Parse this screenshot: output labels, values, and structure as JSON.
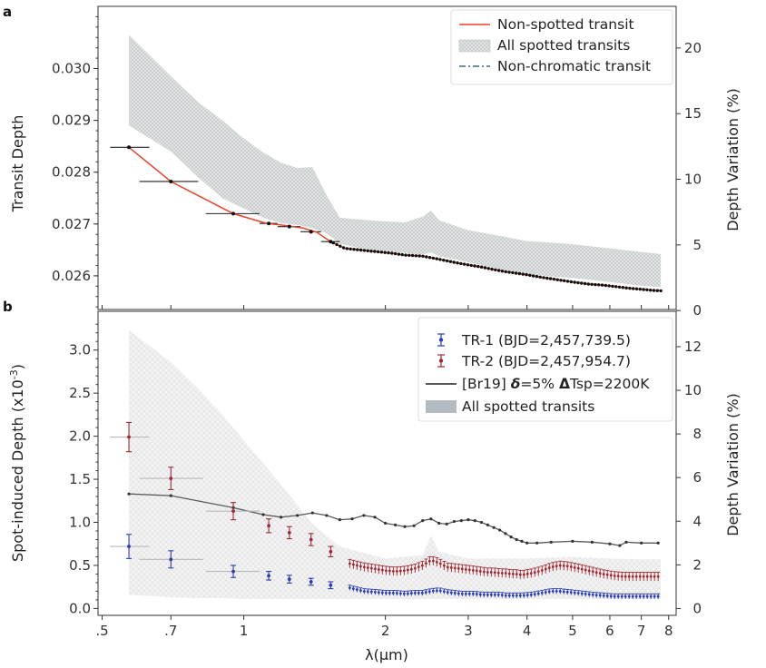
{
  "colors": {
    "red": "#e8432a",
    "tr1": "#2b3eb0",
    "tr2": "#9e2a33",
    "model": "#555b55",
    "band_a": "#d3d7d7",
    "band_b": "#e3e5e5",
    "nonchrom": "#3f6b6b",
    "legend_band": "#b3bbc0"
  },
  "chart_data": [
    {
      "panel": "a",
      "type": "line",
      "xlabel": "λ(μm)",
      "ylabel": "Transit Depth",
      "ylabel_right": "Depth Variation (%)",
      "xscale": "log",
      "xlim": [
        0.49,
        8.3
      ],
      "ylim": [
        0.02535,
        0.0312
      ],
      "yticks": [
        0.026,
        0.027,
        0.028,
        0.029,
        0.03
      ],
      "yticklabels": [
        "0.026",
        "0.027",
        "0.028",
        "0.029",
        "0.030"
      ],
      "right_ticks": [
        0,
        5,
        10,
        15,
        20
      ],
      "right_ticklabels": [
        "0",
        "5",
        "10",
        "15",
        "20"
      ],
      "right_baseline": 0.02533,
      "legend": [
        "Non-spotted transit",
        "All spotted transits",
        "Non-chromatic transit"
      ],
      "nonchromatic_level": 0.02533,
      "nonspotted_x": [
        0.57,
        0.7,
        0.95,
        1.12,
        1.2,
        1.27,
        1.34,
        1.43,
        1.53,
        1.64,
        1.76,
        1.9,
        2.05,
        2.2,
        2.4,
        2.6,
        2.8,
        3.0,
        3.2,
        3.4,
        3.6,
        3.8,
        4.0,
        4.3,
        4.6,
        5.0,
        5.4,
        5.8,
        6.2,
        6.6,
        7.0,
        7.4,
        7.7
      ],
      "nonspotted_y": [
        0.02848,
        0.02782,
        0.0272,
        0.02701,
        0.02698,
        0.02695,
        0.02692,
        0.02684,
        0.02666,
        0.02653,
        0.0265,
        0.02647,
        0.02644,
        0.0264,
        0.02638,
        0.02632,
        0.02626,
        0.02621,
        0.02617,
        0.02612,
        0.02608,
        0.02605,
        0.02602,
        0.02597,
        0.02593,
        0.02588,
        0.02584,
        0.02582,
        0.02579,
        0.02576,
        0.02574,
        0.02572,
        0.02571
      ],
      "binned_points": [
        {
          "x": 0.57,
          "y": 0.02848,
          "xerr": [
            0.52,
            0.63
          ]
        },
        {
          "x": 0.7,
          "y": 0.02782,
          "xerr": [
            0.6,
            0.8
          ]
        },
        {
          "x": 0.95,
          "y": 0.0272,
          "xerr": [
            0.83,
            1.08
          ]
        },
        {
          "x": 1.13,
          "y": 0.02701,
          "xerr": [
            1.08,
            1.18
          ]
        },
        {
          "x": 1.25,
          "y": 0.02695,
          "xerr": [
            1.18,
            1.32
          ]
        },
        {
          "x": 1.39,
          "y": 0.02685,
          "xerr": [
            1.32,
            1.46
          ]
        },
        {
          "x": 1.53,
          "y": 0.02666,
          "xerr": [
            1.46,
            1.6
          ]
        }
      ],
      "band_x": [
        0.57,
        0.7,
        0.8,
        0.9,
        1.0,
        1.1,
        1.2,
        1.3,
        1.4,
        1.5,
        1.6,
        1.8,
        2.0,
        2.2,
        2.4,
        2.5,
        2.6,
        2.8,
        3.0,
        3.5,
        4.0,
        4.5,
        5.0,
        6.0,
        7.0,
        7.7
      ],
      "band_upper": [
        0.03065,
        0.02985,
        0.02935,
        0.029,
        0.02865,
        0.02838,
        0.02818,
        0.02808,
        0.0281,
        0.02755,
        0.02712,
        0.02708,
        0.02705,
        0.02703,
        0.02714,
        0.02726,
        0.02707,
        0.02697,
        0.02688,
        0.02677,
        0.02667,
        0.02664,
        0.02661,
        0.02653,
        0.02646,
        0.02642
      ],
      "band_lower": [
        0.0289,
        0.0284,
        0.0279,
        0.0275,
        0.0273,
        0.02712,
        0.02702,
        0.02698,
        0.02692,
        0.02682,
        0.02662,
        0.02652,
        0.02648,
        0.02644,
        0.02641,
        0.02645,
        0.02638,
        0.02632,
        0.02626,
        0.02613,
        0.02604,
        0.02599,
        0.02596,
        0.02588,
        0.02581,
        0.02578
      ]
    },
    {
      "panel": "b",
      "type": "line",
      "xlabel": "λ(μm)",
      "ylabel": "Spot-induced Depth (x10",
      "ylabel_exp": "-3",
      "ylabel_close": ")",
      "ylabel_right": "Depth Variation (%)",
      "xscale": "log",
      "xlim": [
        0.49,
        8.3
      ],
      "ylim": [
        -0.08,
        3.45
      ],
      "xticks": [
        0.5,
        0.7,
        1,
        2,
        3,
        4,
        5,
        6,
        7,
        8
      ],
      "xticklabels": [
        ".5",
        ".7",
        "1",
        "2",
        "3",
        "4",
        "5",
        "6",
        "7",
        "8"
      ],
      "yticks": [
        0.0,
        0.5,
        1.0,
        1.5,
        2.0,
        2.5,
        3.0
      ],
      "yticklabels": [
        "0.0",
        "0.5",
        "1.0",
        "1.5",
        "2.0",
        "2.5",
        "3.0"
      ],
      "right_ticks": [
        0,
        2,
        4,
        6,
        8,
        10,
        12
      ],
      "right_ticklabels": [
        "0",
        "2",
        "4",
        "6",
        "8",
        "10",
        "12"
      ],
      "right_scale": 0.2533,
      "legend": [
        {
          "label": "TR-1  (BJD=2,457,739.5)"
        },
        {
          "label": "TR-2  (BJD=2,457,954.7)"
        },
        {
          "prefix": "[Br19] ",
          "delta": "δ",
          "eq1": "=5% ",
          "Delta": "Δ",
          "tsp": "Tsp=2200K"
        },
        {
          "label": "All spotted transits"
        }
      ],
      "tr1_x": [
        0.57,
        0.7,
        0.95,
        1.13,
        1.25,
        1.39,
        1.53
      ],
      "tr1_y": [
        0.72,
        0.57,
        0.43,
        0.38,
        0.34,
        0.31,
        0.27
      ],
      "tr1_err": [
        0.14,
        0.1,
        0.07,
        0.05,
        0.045,
        0.04,
        0.04
      ],
      "tr1_xerr": [
        [
          0.52,
          0.63
        ],
        [
          0.6,
          0.82
        ],
        [
          0.83,
          1.08
        ]
      ],
      "tr1_dense_x": [
        1.68,
        1.8,
        1.9,
        2.0,
        2.1,
        2.2,
        2.3,
        2.4,
        2.5,
        2.6,
        2.7,
        2.8,
        2.9,
        3.0,
        3.1,
        3.2,
        3.3,
        3.4,
        3.5,
        3.6,
        3.7,
        3.8,
        3.9,
        4.1,
        4.3,
        4.5,
        4.7,
        4.9,
        5.1,
        5.3,
        5.5,
        5.8,
        6.1,
        6.4,
        6.7,
        7.0,
        7.3,
        7.6
      ],
      "tr1_dense_y": [
        0.24,
        0.2,
        0.19,
        0.18,
        0.18,
        0.17,
        0.18,
        0.18,
        0.2,
        0.21,
        0.19,
        0.18,
        0.17,
        0.17,
        0.17,
        0.16,
        0.16,
        0.16,
        0.16,
        0.15,
        0.15,
        0.15,
        0.15,
        0.16,
        0.18,
        0.2,
        0.2,
        0.19,
        0.18,
        0.17,
        0.16,
        0.15,
        0.14,
        0.14,
        0.14,
        0.14,
        0.14,
        0.14
      ],
      "tr2_x": [
        0.57,
        0.7,
        0.95,
        1.13,
        1.25,
        1.39,
        1.53
      ],
      "tr2_y": [
        1.99,
        1.51,
        1.13,
        0.96,
        0.88,
        0.8,
        0.66
      ],
      "tr2_err": [
        0.17,
        0.13,
        0.1,
        0.08,
        0.07,
        0.07,
        0.06
      ],
      "tr2_xerr": [
        [
          0.52,
          0.63
        ],
        [
          0.6,
          0.82
        ],
        [
          0.83,
          1.08
        ]
      ],
      "tr2_dense_x": [
        1.68,
        1.8,
        1.9,
        2.0,
        2.1,
        2.2,
        2.3,
        2.4,
        2.5,
        2.6,
        2.7,
        2.8,
        2.9,
        3.0,
        3.1,
        3.2,
        3.3,
        3.4,
        3.5,
        3.6,
        3.7,
        3.8,
        3.9,
        4.1,
        4.3,
        4.5,
        4.7,
        4.9,
        5.1,
        5.3,
        5.5,
        5.8,
        6.1,
        6.4,
        6.7,
        7.0,
        7.3,
        7.6
      ],
      "tr2_dense_y": [
        0.52,
        0.48,
        0.46,
        0.44,
        0.43,
        0.44,
        0.46,
        0.5,
        0.56,
        0.53,
        0.48,
        0.47,
        0.46,
        0.45,
        0.44,
        0.43,
        0.42,
        0.42,
        0.41,
        0.41,
        0.4,
        0.4,
        0.39,
        0.41,
        0.44,
        0.48,
        0.5,
        0.49,
        0.47,
        0.45,
        0.43,
        0.4,
        0.38,
        0.37,
        0.37,
        0.37,
        0.37,
        0.37
      ],
      "model_x": [
        0.57,
        0.7,
        0.95,
        1.1,
        1.2,
        1.3,
        1.4,
        1.5,
        1.6,
        1.7,
        1.8,
        1.9,
        2.0,
        2.1,
        2.2,
        2.3,
        2.4,
        2.5,
        2.6,
        2.7,
        2.8,
        2.9,
        3.0,
        3.1,
        3.2,
        3.3,
        3.4,
        3.5,
        3.6,
        3.7,
        3.8,
        3.9,
        4.0,
        4.2,
        4.5,
        5.0,
        5.5,
        6.0,
        6.3,
        6.5,
        7.0,
        7.6
      ],
      "model_y": [
        1.33,
        1.31,
        1.17,
        1.09,
        1.06,
        1.08,
        1.11,
        1.08,
        1.03,
        1.04,
        1.08,
        1.06,
        0.99,
        0.97,
        0.95,
        0.96,
        1.02,
        1.04,
        0.99,
        0.98,
        1.01,
        1.02,
        1.03,
        1.02,
        1.0,
        0.97,
        0.94,
        0.91,
        0.87,
        0.83,
        0.8,
        0.78,
        0.76,
        0.76,
        0.77,
        0.78,
        0.77,
        0.75,
        0.73,
        0.77,
        0.76,
        0.76
      ],
      "band_x": [
        0.57,
        0.7,
        0.8,
        0.9,
        1.0,
        1.2,
        1.4,
        1.6,
        2.0,
        2.4,
        2.5,
        2.6,
        3.0,
        4.0,
        5.0,
        6.0,
        7.0,
        7.7
      ],
      "band_upper": [
        3.23,
        2.86,
        2.55,
        2.25,
        1.95,
        1.44,
        0.98,
        0.72,
        0.58,
        0.62,
        0.85,
        0.66,
        0.58,
        0.58,
        0.6,
        0.58,
        0.57,
        0.57
      ],
      "band_lower": [
        0.16,
        0.13,
        0.12,
        0.12,
        0.11,
        0.11,
        0.11,
        0.11,
        0.11,
        0.11,
        0.11,
        0.11,
        0.11,
        0.11,
        0.11,
        0.11,
        0.11,
        0.11
      ]
    }
  ]
}
